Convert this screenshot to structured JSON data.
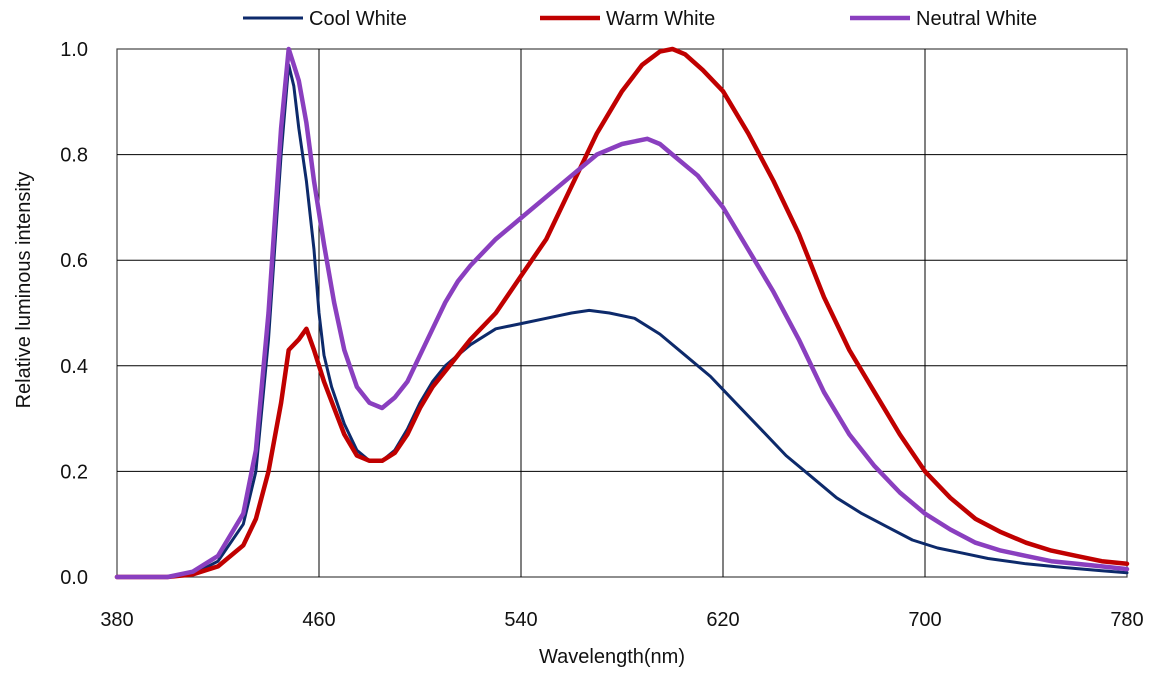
{
  "chart_data": {
    "type": "line",
    "title": "",
    "xlabel": "Wavelength(nm)",
    "ylabel": "Relative luminous intensity",
    "xlim": [
      380,
      780
    ],
    "ylim": [
      0,
      1.0
    ],
    "xticks": [
      380,
      460,
      540,
      620,
      700,
      780
    ],
    "yticks": [
      0.0,
      0.2,
      0.4,
      0.6,
      0.8,
      1.0
    ],
    "xtick_labels": [
      "380",
      "460",
      "540",
      "620",
      "700",
      "780"
    ],
    "ytick_labels": [
      "0.0",
      "0.2",
      "0.4",
      "0.6",
      "0.8",
      "1.0"
    ],
    "grid": true,
    "legend_position": "top",
    "series": [
      {
        "name": "Cool White",
        "color": "#0d2a6b",
        "points": [
          [
            380,
            0
          ],
          [
            400,
            0
          ],
          [
            410,
            0.005
          ],
          [
            420,
            0.03
          ],
          [
            430,
            0.1
          ],
          [
            435,
            0.2
          ],
          [
            440,
            0.45
          ],
          [
            445,
            0.8
          ],
          [
            448,
            0.97
          ],
          [
            450,
            0.93
          ],
          [
            452,
            0.85
          ],
          [
            455,
            0.75
          ],
          [
            458,
            0.62
          ],
          [
            460,
            0.5
          ],
          [
            462,
            0.42
          ],
          [
            465,
            0.36
          ],
          [
            470,
            0.29
          ],
          [
            475,
            0.24
          ],
          [
            480,
            0.22
          ],
          [
            485,
            0.22
          ],
          [
            490,
            0.24
          ],
          [
            495,
            0.28
          ],
          [
            500,
            0.33
          ],
          [
            505,
            0.37
          ],
          [
            510,
            0.4
          ],
          [
            515,
            0.42
          ],
          [
            520,
            0.44
          ],
          [
            530,
            0.47
          ],
          [
            540,
            0.48
          ],
          [
            550,
            0.49
          ],
          [
            560,
            0.5
          ],
          [
            567,
            0.505
          ],
          [
            575,
            0.5
          ],
          [
            585,
            0.49
          ],
          [
            595,
            0.46
          ],
          [
            605,
            0.42
          ],
          [
            615,
            0.38
          ],
          [
            625,
            0.33
          ],
          [
            635,
            0.28
          ],
          [
            645,
            0.23
          ],
          [
            655,
            0.19
          ],
          [
            665,
            0.15
          ],
          [
            675,
            0.12
          ],
          [
            685,
            0.095
          ],
          [
            695,
            0.07
          ],
          [
            705,
            0.055
          ],
          [
            715,
            0.045
          ],
          [
            725,
            0.035
          ],
          [
            740,
            0.025
          ],
          [
            755,
            0.018
          ],
          [
            770,
            0.012
          ],
          [
            780,
            0.008
          ]
        ]
      },
      {
        "name": "Warm White",
        "color": "#c00000",
        "points": [
          [
            380,
            0
          ],
          [
            400,
            0
          ],
          [
            410,
            0.005
          ],
          [
            420,
            0.02
          ],
          [
            430,
            0.06
          ],
          [
            435,
            0.11
          ],
          [
            440,
            0.2
          ],
          [
            445,
            0.33
          ],
          [
            448,
            0.43
          ],
          [
            452,
            0.45
          ],
          [
            455,
            0.47
          ],
          [
            458,
            0.43
          ],
          [
            462,
            0.37
          ],
          [
            466,
            0.32
          ],
          [
            470,
            0.27
          ],
          [
            475,
            0.23
          ],
          [
            480,
            0.22
          ],
          [
            485,
            0.22
          ],
          [
            490,
            0.235
          ],
          [
            495,
            0.27
          ],
          [
            500,
            0.32
          ],
          [
            505,
            0.36
          ],
          [
            510,
            0.39
          ],
          [
            515,
            0.42
          ],
          [
            520,
            0.45
          ],
          [
            530,
            0.5
          ],
          [
            540,
            0.57
          ],
          [
            550,
            0.64
          ],
          [
            560,
            0.74
          ],
          [
            570,
            0.84
          ],
          [
            580,
            0.92
          ],
          [
            588,
            0.97
          ],
          [
            595,
            0.995
          ],
          [
            600,
            1.0
          ],
          [
            605,
            0.99
          ],
          [
            612,
            0.96
          ],
          [
            620,
            0.92
          ],
          [
            630,
            0.84
          ],
          [
            640,
            0.75
          ],
          [
            650,
            0.65
          ],
          [
            660,
            0.53
          ],
          [
            670,
            0.43
          ],
          [
            680,
            0.35
          ],
          [
            690,
            0.27
          ],
          [
            700,
            0.2
          ],
          [
            710,
            0.15
          ],
          [
            720,
            0.11
          ],
          [
            730,
            0.085
          ],
          [
            740,
            0.065
          ],
          [
            750,
            0.05
          ],
          [
            760,
            0.04
          ],
          [
            770,
            0.03
          ],
          [
            780,
            0.025
          ]
        ]
      },
      {
        "name": "Neutral White",
        "color": "#8a3fbf",
        "points": [
          [
            380,
            0
          ],
          [
            400,
            0
          ],
          [
            410,
            0.01
          ],
          [
            420,
            0.04
          ],
          [
            430,
            0.12
          ],
          [
            435,
            0.24
          ],
          [
            440,
            0.5
          ],
          [
            445,
            0.85
          ],
          [
            448,
            1.0
          ],
          [
            450,
            0.97
          ],
          [
            452,
            0.94
          ],
          [
            455,
            0.86
          ],
          [
            458,
            0.75
          ],
          [
            462,
            0.63
          ],
          [
            466,
            0.52
          ],
          [
            470,
            0.43
          ],
          [
            475,
            0.36
          ],
          [
            480,
            0.33
          ],
          [
            485,
            0.32
          ],
          [
            490,
            0.34
          ],
          [
            495,
            0.37
          ],
          [
            500,
            0.42
          ],
          [
            505,
            0.47
          ],
          [
            510,
            0.52
          ],
          [
            515,
            0.56
          ],
          [
            520,
            0.59
          ],
          [
            530,
            0.64
          ],
          [
            540,
            0.68
          ],
          [
            550,
            0.72
          ],
          [
            560,
            0.76
          ],
          [
            570,
            0.8
          ],
          [
            580,
            0.82
          ],
          [
            590,
            0.83
          ],
          [
            595,
            0.82
          ],
          [
            600,
            0.8
          ],
          [
            610,
            0.76
          ],
          [
            620,
            0.7
          ],
          [
            630,
            0.62
          ],
          [
            640,
            0.54
          ],
          [
            650,
            0.45
          ],
          [
            660,
            0.35
          ],
          [
            670,
            0.27
          ],
          [
            680,
            0.21
          ],
          [
            690,
            0.16
          ],
          [
            700,
            0.12
          ],
          [
            710,
            0.09
          ],
          [
            720,
            0.065
          ],
          [
            730,
            0.05
          ],
          [
            740,
            0.04
          ],
          [
            750,
            0.03
          ],
          [
            760,
            0.025
          ],
          [
            770,
            0.02
          ],
          [
            780,
            0.015
          ]
        ]
      }
    ]
  }
}
